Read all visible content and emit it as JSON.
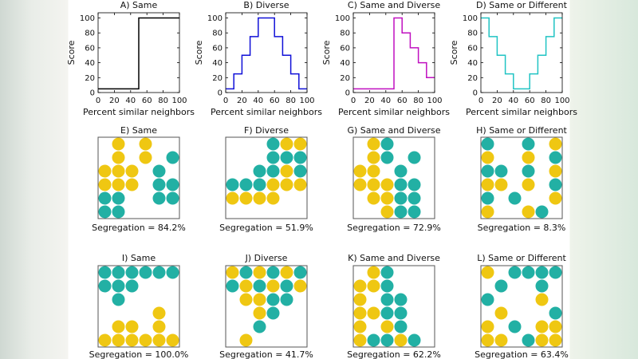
{
  "colors": {
    "yellow": "#efc712",
    "teal": "#22b0a4",
    "frame": "#555555"
  },
  "chart_data": [
    {
      "type": "line",
      "title": "A) Same",
      "xlabel": "Percent similar neighbors",
      "ylabel": "Score",
      "xlim": [
        0,
        100
      ],
      "ylim": [
        0,
        107
      ],
      "xticks": [
        0,
        20,
        40,
        60,
        80,
        100
      ],
      "yticks": [
        0,
        20,
        40,
        60,
        80,
        100
      ],
      "color": "#000000",
      "x": [
        0,
        50,
        50,
        100
      ],
      "y": [
        5,
        5,
        100,
        100
      ]
    },
    {
      "type": "line",
      "title": "B) Diverse",
      "xlabel": "Percent similar neighbors",
      "ylabel": "Score",
      "xlim": [
        0,
        100
      ],
      "ylim": [
        0,
        107
      ],
      "xticks": [
        0,
        20,
        40,
        60,
        80,
        100
      ],
      "yticks": [
        0,
        20,
        40,
        60,
        80,
        100
      ],
      "color": "#1010d8",
      "x": [
        0,
        10,
        10,
        20,
        20,
        30,
        30,
        40,
        40,
        60,
        60,
        70,
        70,
        80,
        80,
        90,
        90,
        100
      ],
      "y": [
        5,
        5,
        25,
        25,
        50,
        50,
        75,
        75,
        100,
        100,
        75,
        75,
        50,
        50,
        25,
        25,
        5,
        5
      ]
    },
    {
      "type": "line",
      "title": "C) Same and Diverse",
      "xlabel": "Percent similar neighbors",
      "ylabel": "Score",
      "xlim": [
        0,
        100
      ],
      "ylim": [
        0,
        107
      ],
      "xticks": [
        0,
        20,
        40,
        60,
        80,
        100
      ],
      "yticks": [
        0,
        20,
        40,
        60,
        80,
        100
      ],
      "color": "#c010c0",
      "x": [
        0,
        50,
        50,
        60,
        60,
        70,
        70,
        80,
        80,
        90,
        90,
        100
      ],
      "y": [
        5,
        5,
        100,
        100,
        80,
        80,
        60,
        60,
        40,
        40,
        20,
        20
      ]
    },
    {
      "type": "line",
      "title": "D) Same or Different",
      "xlabel": "Percent similar neighbors",
      "ylabel": "Score",
      "xlim": [
        0,
        100
      ],
      "ylim": [
        0,
        107
      ],
      "xticks": [
        0,
        20,
        40,
        60,
        80,
        100
      ],
      "yticks": [
        0,
        20,
        40,
        60,
        80,
        100
      ],
      "color": "#20c4c4",
      "x": [
        0,
        10,
        10,
        20,
        20,
        30,
        30,
        40,
        40,
        60,
        60,
        70,
        70,
        80,
        80,
        90,
        90,
        100
      ],
      "y": [
        100,
        100,
        75,
        75,
        50,
        50,
        25,
        25,
        5,
        5,
        25,
        25,
        50,
        50,
        75,
        75,
        100,
        100
      ]
    }
  ],
  "grids": [
    {
      "title": "E) Same",
      "caption": "Segregation = 84.2%",
      "cells": [
        ".Y.Y..",
        ".Y.Y.T",
        "YYY.T.",
        "YYY.TT",
        "TT..TT",
        "TT...."
      ]
    },
    {
      "title": "F) Diverse",
      "caption": "Segregation = 51.9%",
      "cells": [
        "...TYY",
        "...TTT",
        "..TTYT",
        "TTTYYY",
        "YYYY..",
        "......"
      ]
    },
    {
      "title": "G) Same and Diverse",
      "caption": "Segregation = 72.9%",
      "cells": [
        ".YT...",
        ".YT.T.",
        "YY.T..",
        "YYYTT.",
        ".YYTT.",
        "..YTT."
      ]
    },
    {
      "title": "H) Same or Different",
      "caption": "Segregation = 8.3%",
      "cells": [
        "T..T.Y",
        "Y..Y.T",
        "TT.T.Y",
        "YY.Y.T",
        "T.T..Y",
        "Y..YT."
      ]
    },
    {
      "title": "I) Same",
      "caption": "Segregation = 100.0%",
      "cells": [
        "TTTTTT",
        "TTT...",
        ".T....",
        "....Y.",
        ".YY.Y.",
        "YYYYYY"
      ]
    },
    {
      "title": "J) Diverse",
      "caption": "Segregation = 41.7%",
      "cells": [
        "YTYTYT",
        "TYTYTY",
        ".YYTT.",
        "..YT..",
        "..T...",
        ".Y...."
      ]
    },
    {
      "title": "K) Same and Diverse",
      "caption": "Segregation = 62.2%",
      "cells": [
        ".YT...",
        "YYT...",
        "Y.TT..",
        "YYTT..",
        "Y.YT..",
        "YTTYT."
      ]
    },
    {
      "title": "L) Same or Different",
      "caption": "Segregation = 63.4%",
      "cells": [
        "Y.TTTT",
        ".T..T.",
        "T...Y.",
        ".Y...T",
        "Y.T.YY",
        "YY.TYY"
      ]
    }
  ]
}
